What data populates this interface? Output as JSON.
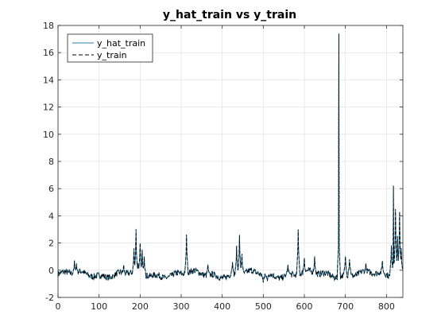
{
  "chart_data": {
    "type": "line",
    "title": "y_hat_train vs y_train",
    "xlabel": "",
    "ylabel": "",
    "xlim": [
      0,
      840
    ],
    "ylim": [
      -2,
      18
    ],
    "xticks": [
      0,
      100,
      200,
      300,
      400,
      500,
      600,
      700,
      800
    ],
    "yticks": [
      -2,
      0,
      2,
      4,
      6,
      8,
      10,
      12,
      14,
      16,
      18
    ],
    "grid": true,
    "legend": "top-left",
    "n_points": 840,
    "baseline": -0.3,
    "noise_amplitude": 0.22,
    "features": [
      {
        "x": 40,
        "y": 0.7
      },
      {
        "x": 45,
        "y": 0.5
      },
      {
        "x": 160,
        "y": 0.4
      },
      {
        "x": 185,
        "y": 1.6
      },
      {
        "x": 190,
        "y": 3.0
      },
      {
        "x": 195,
        "y": 0.5
      },
      {
        "x": 200,
        "y": 2.0
      },
      {
        "x": 205,
        "y": 1.5
      },
      {
        "x": 210,
        "y": 1.0
      },
      {
        "x": 313,
        "y": 2.6
      },
      {
        "x": 365,
        "y": 0.4
      },
      {
        "x": 425,
        "y": 0.6
      },
      {
        "x": 435,
        "y": 1.8
      },
      {
        "x": 442,
        "y": 2.6
      },
      {
        "x": 448,
        "y": 1.2
      },
      {
        "x": 500,
        "y": -0.9
      },
      {
        "x": 510,
        "y": -0.8
      },
      {
        "x": 560,
        "y": 0.4
      },
      {
        "x": 585,
        "y": 3.0
      },
      {
        "x": 600,
        "y": 0.9
      },
      {
        "x": 625,
        "y": 1.0
      },
      {
        "x": 684,
        "y": 17.4
      },
      {
        "x": 700,
        "y": 1.0
      },
      {
        "x": 710,
        "y": 0.8
      },
      {
        "x": 750,
        "y": 0.5
      },
      {
        "x": 790,
        "y": 0.7
      },
      {
        "x": 812,
        "y": 1.8
      },
      {
        "x": 817,
        "y": 6.2
      },
      {
        "x": 822,
        "y": 4.5
      },
      {
        "x": 827,
        "y": 2.5
      },
      {
        "x": 832,
        "y": 4.3
      },
      {
        "x": 836,
        "y": 1.6
      }
    ],
    "series": [
      {
        "name": "y_hat_train",
        "color": "#2b7fa8",
        "style": "solid"
      },
      {
        "name": "y_train",
        "color": "#000000",
        "style": "dashed"
      }
    ]
  }
}
